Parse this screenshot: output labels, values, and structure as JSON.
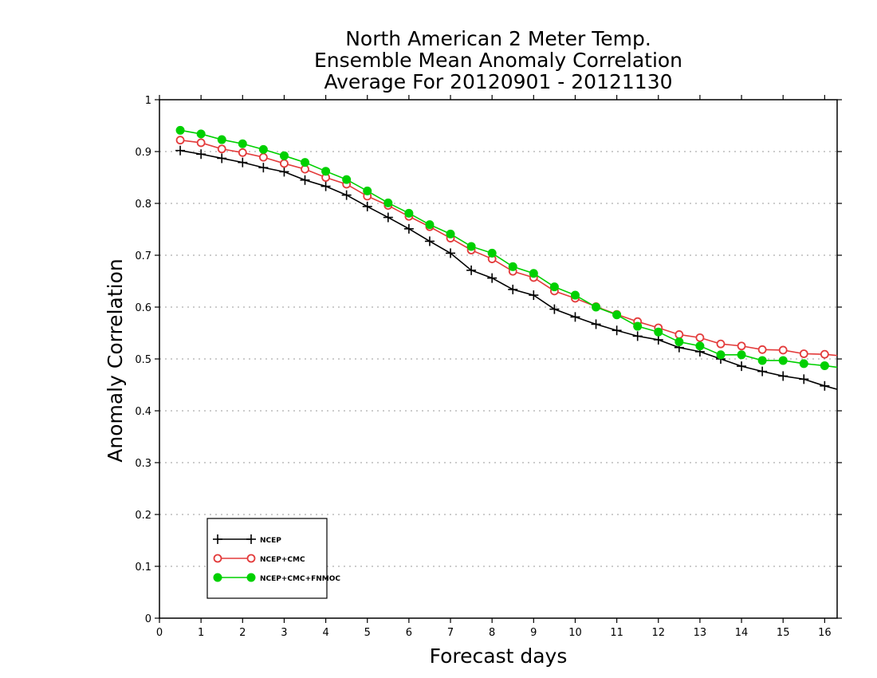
{
  "chart_data": {
    "type": "line",
    "title": [
      "North American 2 Meter Temp.",
      "Ensemble Mean Anomaly Correlation",
      "Average For 20120901 - 20121130"
    ],
    "xlabel": "Forecast days",
    "ylabel": "Anomaly Correlation",
    "xlim": [
      0,
      16.3
    ],
    "ylim": [
      0,
      1
    ],
    "xticks": [
      0,
      1,
      2,
      3,
      4,
      5,
      6,
      7,
      8,
      9,
      10,
      11,
      12,
      13,
      14,
      15,
      16
    ],
    "yticks": [
      0,
      0.1,
      0.2,
      0.3,
      0.4,
      0.5,
      0.6,
      0.7,
      0.8,
      0.9,
      1
    ],
    "grid": "horizontal dotted",
    "legend_position": "bottom-left",
    "x": [
      0.5,
      1,
      1.5,
      2,
      2.5,
      3,
      3.5,
      4,
      4.5,
      5,
      5.5,
      6,
      6.5,
      7,
      7.5,
      8,
      8.5,
      9,
      9.5,
      10,
      10.5,
      11,
      11.5,
      12,
      12.5,
      13,
      13.5,
      14,
      14.5,
      15,
      15.5,
      16,
      16.5
    ],
    "series": [
      {
        "name": "NCEP",
        "color": "#000000",
        "marker": "plus",
        "values": [
          0.902,
          0.895,
          0.887,
          0.879,
          0.869,
          0.861,
          0.845,
          0.833,
          0.816,
          0.794,
          0.773,
          0.751,
          0.727,
          0.704,
          0.671,
          0.656,
          0.634,
          0.623,
          0.596,
          0.581,
          0.567,
          0.555,
          0.544,
          0.537,
          0.522,
          0.514,
          0.5,
          0.486,
          0.476,
          0.467,
          0.461,
          0.448,
          0.437
        ]
      },
      {
        "name": "NCEP+CMC",
        "color": "#e33b3b",
        "marker": "open-circle",
        "values": [
          0.922,
          0.917,
          0.905,
          0.898,
          0.889,
          0.877,
          0.866,
          0.85,
          0.837,
          0.814,
          0.796,
          0.775,
          0.755,
          0.733,
          0.71,
          0.693,
          0.669,
          0.657,
          0.631,
          0.617,
          0.601,
          0.586,
          0.572,
          0.56,
          0.547,
          0.541,
          0.529,
          0.525,
          0.518,
          0.517,
          0.51,
          0.509,
          0.505
        ]
      },
      {
        "name": "NCEP+CMC+FNMOC",
        "color": "#00d000",
        "marker": "filled-circle",
        "values": [
          0.941,
          0.934,
          0.923,
          0.915,
          0.904,
          0.892,
          0.879,
          0.862,
          0.846,
          0.824,
          0.801,
          0.781,
          0.759,
          0.741,
          0.717,
          0.704,
          0.678,
          0.665,
          0.639,
          0.623,
          0.6,
          0.585,
          0.563,
          0.552,
          0.533,
          0.525,
          0.508,
          0.508,
          0.497,
          0.497,
          0.491,
          0.487,
          0.482
        ]
      }
    ]
  }
}
